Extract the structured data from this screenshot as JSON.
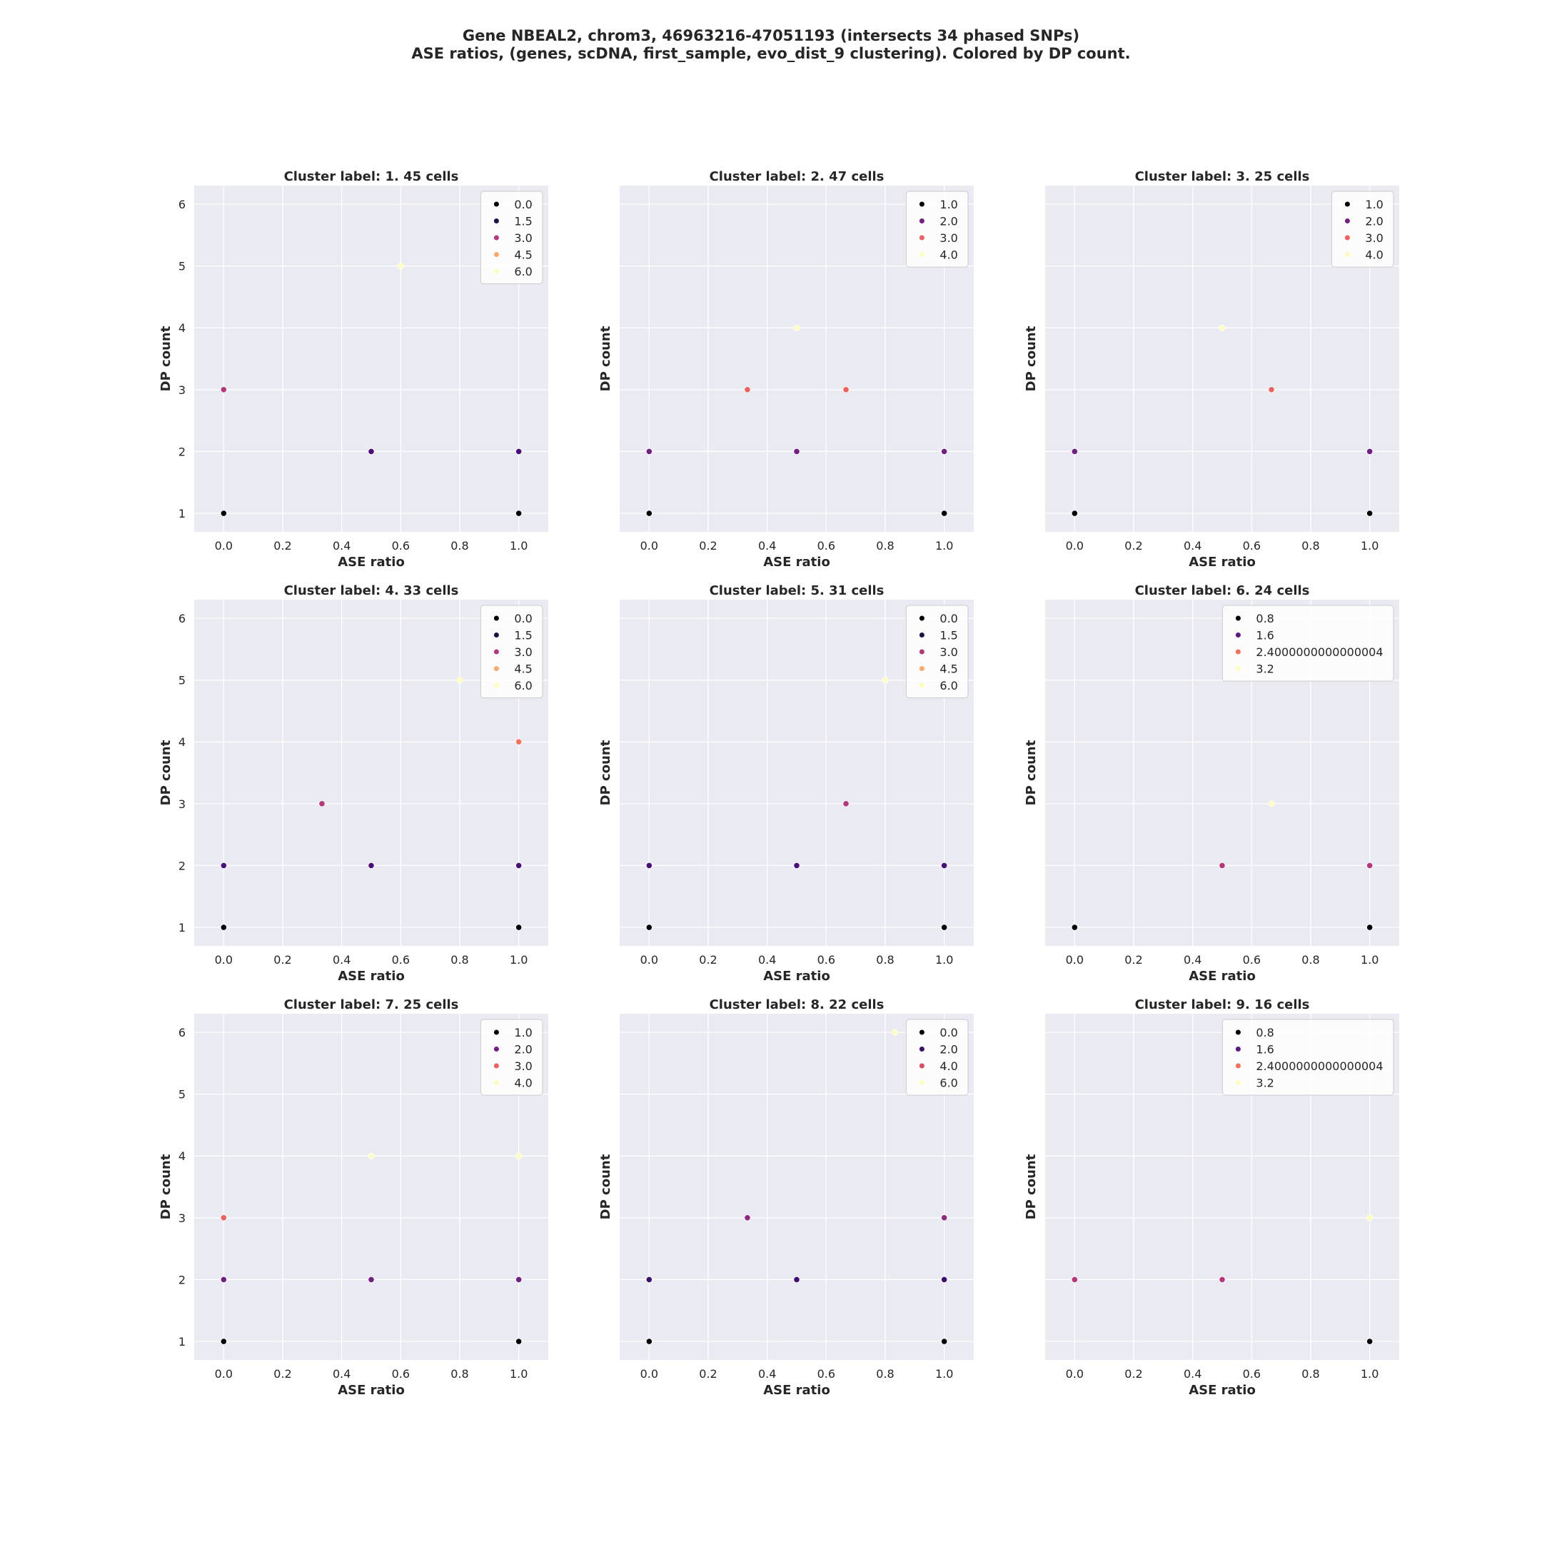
{
  "figure": {
    "title_line1": "Gene NBEAL2, chrom3, 46963216-47051193 (intersects 34 phased SNPs)",
    "title_line2": "ASE ratios, (genes, scDNA, first_sample, evo_dist_9 clustering). Colored by DP count."
  },
  "chart_data": [
    {
      "type": "scatter",
      "title": "Cluster label: 1. 45 cells",
      "xlabel": "ASE ratio",
      "ylabel": "DP count",
      "xlim": [
        -0.1,
        1.1
      ],
      "ylim": [
        0.7,
        6.3
      ],
      "xticks": [
        "0.0",
        "0.2",
        "0.4",
        "0.6",
        "0.8",
        "1.0"
      ],
      "yticks": [
        "1",
        "2",
        "3",
        "4",
        "5",
        "6"
      ],
      "show_yticks": true,
      "legend_position": "top-right",
      "legend": [
        {
          "label": "0.0",
          "color": "#000004"
        },
        {
          "label": "1.5",
          "color": "#1f1147"
        },
        {
          "label": "3.0",
          "color": "#b5367a"
        },
        {
          "label": "4.5",
          "color": "#fcaa6c"
        },
        {
          "label": "6.0",
          "color": "#fcfdbf"
        }
      ],
      "points": [
        {
          "x": 0.0,
          "y": 1,
          "color": "#000004"
        },
        {
          "x": 1.0,
          "y": 1,
          "color": "#000004"
        },
        {
          "x": 0.5,
          "y": 2,
          "color": "#4a1079"
        },
        {
          "x": 1.0,
          "y": 2,
          "color": "#4a1079"
        },
        {
          "x": 0.0,
          "y": 3,
          "color": "#b5367a"
        },
        {
          "x": 0.6,
          "y": 5,
          "color": "#fcfdbf"
        }
      ]
    },
    {
      "type": "scatter",
      "title": "Cluster label: 2. 47 cells",
      "xlabel": "ASE ratio",
      "ylabel": "DP count",
      "xlim": [
        -0.1,
        1.1
      ],
      "ylim": [
        0.7,
        6.3
      ],
      "xticks": [
        "0.0",
        "0.2",
        "0.4",
        "0.6",
        "0.8",
        "1.0"
      ],
      "yticks": [
        "1",
        "2",
        "3",
        "4",
        "5",
        "6"
      ],
      "show_yticks": false,
      "legend_position": "top-right",
      "legend": [
        {
          "label": "1.0",
          "color": "#000004"
        },
        {
          "label": "2.0",
          "color": "#711f81"
        },
        {
          "label": "3.0",
          "color": "#f1605d"
        },
        {
          "label": "4.0",
          "color": "#fcfdbf"
        }
      ],
      "points": [
        {
          "x": 0.0,
          "y": 1,
          "color": "#000004"
        },
        {
          "x": 1.0,
          "y": 1,
          "color": "#000004"
        },
        {
          "x": 0.0,
          "y": 2,
          "color": "#711f81"
        },
        {
          "x": 0.5,
          "y": 2,
          "color": "#711f81"
        },
        {
          "x": 1.0,
          "y": 2,
          "color": "#711f81"
        },
        {
          "x": 0.333,
          "y": 3,
          "color": "#f1605d"
        },
        {
          "x": 0.667,
          "y": 3,
          "color": "#f1605d"
        },
        {
          "x": 0.5,
          "y": 4,
          "color": "#fcfdbf"
        }
      ]
    },
    {
      "type": "scatter",
      "title": "Cluster label: 3. 25 cells",
      "xlabel": "ASE ratio",
      "ylabel": "DP count",
      "xlim": [
        -0.1,
        1.1
      ],
      "ylim": [
        0.7,
        6.3
      ],
      "xticks": [
        "0.0",
        "0.2",
        "0.4",
        "0.6",
        "0.8",
        "1.0"
      ],
      "yticks": [
        "1",
        "2",
        "3",
        "4",
        "5",
        "6"
      ],
      "show_yticks": false,
      "legend_position": "top-right",
      "legend": [
        {
          "label": "1.0",
          "color": "#000004"
        },
        {
          "label": "2.0",
          "color": "#711f81"
        },
        {
          "label": "3.0",
          "color": "#f1605d"
        },
        {
          "label": "4.0",
          "color": "#fcfdbf"
        }
      ],
      "points": [
        {
          "x": 0.0,
          "y": 1,
          "color": "#000004"
        },
        {
          "x": 1.0,
          "y": 1,
          "color": "#000004"
        },
        {
          "x": 0.0,
          "y": 2,
          "color": "#711f81"
        },
        {
          "x": 1.0,
          "y": 2,
          "color": "#711f81"
        },
        {
          "x": 0.667,
          "y": 3,
          "color": "#f1605d"
        },
        {
          "x": 0.5,
          "y": 4,
          "color": "#fcfdbf"
        }
      ]
    },
    {
      "type": "scatter",
      "title": "Cluster label: 4. 33 cells",
      "xlabel": "ASE ratio",
      "ylabel": "DP count",
      "xlim": [
        -0.1,
        1.1
      ],
      "ylim": [
        0.7,
        6.3
      ],
      "xticks": [
        "0.0",
        "0.2",
        "0.4",
        "0.6",
        "0.8",
        "1.0"
      ],
      "yticks": [
        "1",
        "2",
        "3",
        "4",
        "5",
        "6"
      ],
      "show_yticks": true,
      "legend_position": "top-right",
      "legend": [
        {
          "label": "0.0",
          "color": "#000004"
        },
        {
          "label": "1.5",
          "color": "#1f1147"
        },
        {
          "label": "3.0",
          "color": "#b5367a"
        },
        {
          "label": "4.5",
          "color": "#fcaa6c"
        },
        {
          "label": "6.0",
          "color": "#fcfdbf"
        }
      ],
      "points": [
        {
          "x": 0.0,
          "y": 1,
          "color": "#000004"
        },
        {
          "x": 1.0,
          "y": 1,
          "color": "#000004"
        },
        {
          "x": 0.0,
          "y": 2,
          "color": "#4a1079"
        },
        {
          "x": 0.5,
          "y": 2,
          "color": "#4a1079"
        },
        {
          "x": 1.0,
          "y": 2,
          "color": "#4a1079"
        },
        {
          "x": 0.333,
          "y": 3,
          "color": "#b5367a"
        },
        {
          "x": 1.0,
          "y": 4,
          "color": "#f7705c"
        },
        {
          "x": 0.8,
          "y": 5,
          "color": "#fcfdbf"
        }
      ]
    },
    {
      "type": "scatter",
      "title": "Cluster label: 5. 31 cells",
      "xlabel": "ASE ratio",
      "ylabel": "DP count",
      "xlim": [
        -0.1,
        1.1
      ],
      "ylim": [
        0.7,
        6.3
      ],
      "xticks": [
        "0.0",
        "0.2",
        "0.4",
        "0.6",
        "0.8",
        "1.0"
      ],
      "yticks": [
        "1",
        "2",
        "3",
        "4",
        "5",
        "6"
      ],
      "show_yticks": false,
      "legend_position": "top-right",
      "legend": [
        {
          "label": "0.0",
          "color": "#000004"
        },
        {
          "label": "1.5",
          "color": "#1f1147"
        },
        {
          "label": "3.0",
          "color": "#b5367a"
        },
        {
          "label": "4.5",
          "color": "#fcaa6c"
        },
        {
          "label": "6.0",
          "color": "#fcfdbf"
        }
      ],
      "points": [
        {
          "x": 0.0,
          "y": 1,
          "color": "#000004"
        },
        {
          "x": 1.0,
          "y": 1,
          "color": "#000004"
        },
        {
          "x": 0.0,
          "y": 2,
          "color": "#4a1079"
        },
        {
          "x": 0.5,
          "y": 2,
          "color": "#4a1079"
        },
        {
          "x": 1.0,
          "y": 2,
          "color": "#4a1079"
        },
        {
          "x": 0.667,
          "y": 3,
          "color": "#b5367a"
        },
        {
          "x": 0.8,
          "y": 5,
          "color": "#fcfdbf"
        }
      ]
    },
    {
      "type": "scatter",
      "title": "Cluster label: 6. 24 cells",
      "xlabel": "ASE ratio",
      "ylabel": "DP count",
      "xlim": [
        -0.1,
        1.1
      ],
      "ylim": [
        0.7,
        6.3
      ],
      "xticks": [
        "0.0",
        "0.2",
        "0.4",
        "0.6",
        "0.8",
        "1.0"
      ],
      "yticks": [
        "1",
        "2",
        "3",
        "4",
        "5",
        "6"
      ],
      "show_yticks": false,
      "legend_position": "top-right",
      "legend": [
        {
          "label": "0.8",
          "color": "#000004"
        },
        {
          "label": "1.6",
          "color": "#5f187f"
        },
        {
          "label": "2.4000000000000004",
          "color": "#f7705c"
        },
        {
          "label": "3.2",
          "color": "#fcfdbf"
        }
      ],
      "points": [
        {
          "x": 0.0,
          "y": 1,
          "color": "#000004"
        },
        {
          "x": 1.0,
          "y": 1,
          "color": "#000004"
        },
        {
          "x": 0.5,
          "y": 2,
          "color": "#b5367a"
        },
        {
          "x": 1.0,
          "y": 2,
          "color": "#b5367a"
        },
        {
          "x": 0.667,
          "y": 3,
          "color": "#fcfdbf"
        }
      ]
    },
    {
      "type": "scatter",
      "title": "Cluster label: 7. 25 cells",
      "xlabel": "ASE ratio",
      "ylabel": "DP count",
      "xlim": [
        -0.1,
        1.1
      ],
      "ylim": [
        0.7,
        6.3
      ],
      "xticks": [
        "0.0",
        "0.2",
        "0.4",
        "0.6",
        "0.8",
        "1.0"
      ],
      "yticks": [
        "1",
        "2",
        "3",
        "4",
        "5",
        "6"
      ],
      "show_yticks": true,
      "legend_position": "top-right",
      "legend": [
        {
          "label": "1.0",
          "color": "#000004"
        },
        {
          "label": "2.0",
          "color": "#711f81"
        },
        {
          "label": "3.0",
          "color": "#f1605d"
        },
        {
          "label": "4.0",
          "color": "#fcfdbf"
        }
      ],
      "points": [
        {
          "x": 0.0,
          "y": 1,
          "color": "#000004"
        },
        {
          "x": 1.0,
          "y": 1,
          "color": "#000004"
        },
        {
          "x": 0.0,
          "y": 2,
          "color": "#711f81"
        },
        {
          "x": 0.5,
          "y": 2,
          "color": "#711f81"
        },
        {
          "x": 1.0,
          "y": 2,
          "color": "#711f81"
        },
        {
          "x": 0.0,
          "y": 3,
          "color": "#f1605d"
        },
        {
          "x": 0.5,
          "y": 4,
          "color": "#fcfdbf"
        },
        {
          "x": 1.0,
          "y": 4,
          "color": "#fcfdbf"
        }
      ]
    },
    {
      "type": "scatter",
      "title": "Cluster label: 8. 22 cells",
      "xlabel": "ASE ratio",
      "ylabel": "DP count",
      "xlim": [
        -0.1,
        1.1
      ],
      "ylim": [
        0.7,
        6.3
      ],
      "xticks": [
        "0.0",
        "0.2",
        "0.4",
        "0.6",
        "0.8",
        "1.0"
      ],
      "yticks": [
        "1",
        "2",
        "3",
        "4",
        "5",
        "6"
      ],
      "show_yticks": false,
      "legend_position": "top-right",
      "legend": [
        {
          "label": "0.0",
          "color": "#000004"
        },
        {
          "label": "2.0",
          "color": "#3b0f70"
        },
        {
          "label": "4.0",
          "color": "#de4968"
        },
        {
          "label": "6.0",
          "color": "#fcfdbf"
        }
      ],
      "points": [
        {
          "x": 0.0,
          "y": 1,
          "color": "#000004"
        },
        {
          "x": 1.0,
          "y": 1,
          "color": "#000004"
        },
        {
          "x": 0.0,
          "y": 2,
          "color": "#3b0f70"
        },
        {
          "x": 0.5,
          "y": 2,
          "color": "#3b0f70"
        },
        {
          "x": 1.0,
          "y": 2,
          "color": "#3b0f70"
        },
        {
          "x": 0.333,
          "y": 3,
          "color": "#8c2981"
        },
        {
          "x": 1.0,
          "y": 3,
          "color": "#8c2981"
        },
        {
          "x": 0.833,
          "y": 6,
          "color": "#fcfdbf"
        }
      ]
    },
    {
      "type": "scatter",
      "title": "Cluster label: 9. 16 cells",
      "xlabel": "ASE ratio",
      "ylabel": "DP count",
      "xlim": [
        -0.1,
        1.1
      ],
      "ylim": [
        0.7,
        6.3
      ],
      "xticks": [
        "0.0",
        "0.2",
        "0.4",
        "0.6",
        "0.8",
        "1.0"
      ],
      "yticks": [
        "1",
        "2",
        "3",
        "4",
        "5",
        "6"
      ],
      "show_yticks": false,
      "legend_position": "top-right",
      "legend": [
        {
          "label": "0.8",
          "color": "#000004"
        },
        {
          "label": "1.6",
          "color": "#5f187f"
        },
        {
          "label": "2.4000000000000004",
          "color": "#f7705c"
        },
        {
          "label": "3.2",
          "color": "#fcfdbf"
        }
      ],
      "points": [
        {
          "x": 1.0,
          "y": 1,
          "color": "#000004"
        },
        {
          "x": 0.0,
          "y": 2,
          "color": "#b5367a"
        },
        {
          "x": 0.5,
          "y": 2,
          "color": "#b5367a"
        },
        {
          "x": 1.0,
          "y": 3,
          "color": "#fcfdbf"
        }
      ]
    }
  ],
  "style": {
    "panel_bg": "#eaeaf2",
    "grid_color": "#ffffff",
    "text_color": "#262626"
  }
}
